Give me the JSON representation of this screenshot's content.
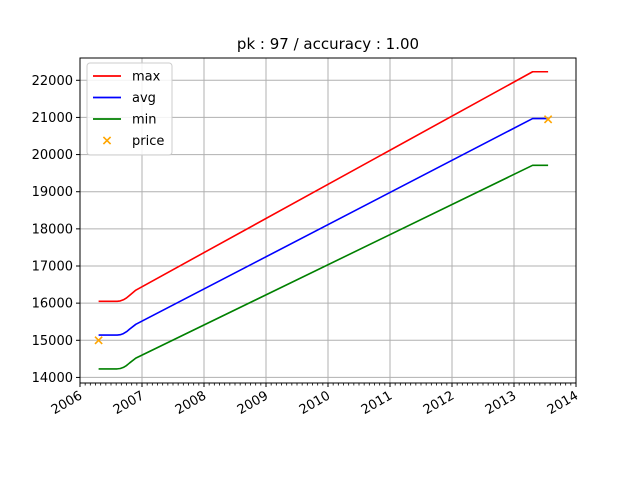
{
  "chart_data": {
    "type": "line",
    "title": "pk : 97 / accuracy : 1.00",
    "xlabel": "",
    "ylabel": "",
    "xlim": [
      2006.0,
      2014.0
    ],
    "ylim": [
      13850,
      22600
    ],
    "x_ticks": [
      2006,
      2007,
      2008,
      2009,
      2010,
      2011,
      2012,
      2013,
      2014
    ],
    "x_tick_labels": [
      "2006",
      "2007",
      "2008",
      "2009",
      "2010",
      "2011",
      "2012",
      "2013",
      "2014"
    ],
    "y_ticks": [
      14000,
      15000,
      16000,
      17000,
      18000,
      19000,
      20000,
      21000,
      22000
    ],
    "y_tick_labels": [
      "14000",
      "15000",
      "16000",
      "17000",
      "18000",
      "19000",
      "20000",
      "21000",
      "22000"
    ],
    "grid": true,
    "legend_position": "top-left",
    "series": [
      {
        "name": "max",
        "color": "#ff0000",
        "style": "line",
        "x": [
          2006.3,
          2006.6,
          2006.65,
          2006.7,
          2006.75,
          2006.8,
          2006.9,
          2013.3,
          2013.55
        ],
        "y": [
          16050,
          16050,
          16060,
          16090,
          16140,
          16210,
          16350,
          22230,
          22230
        ]
      },
      {
        "name": "avg",
        "color": "#0000ff",
        "style": "line",
        "x": [
          2006.3,
          2006.6,
          2006.65,
          2006.7,
          2006.75,
          2006.8,
          2006.9,
          2013.3,
          2013.55
        ],
        "y": [
          15140,
          15140,
          15150,
          15180,
          15230,
          15300,
          15430,
          20970,
          20970
        ]
      },
      {
        "name": "min",
        "color": "#008000",
        "style": "line",
        "x": [
          2006.3,
          2006.6,
          2006.65,
          2006.7,
          2006.75,
          2006.8,
          2006.9,
          2013.3,
          2013.55
        ],
        "y": [
          14230,
          14230,
          14240,
          14270,
          14320,
          14390,
          14520,
          19710,
          19710
        ]
      },
      {
        "name": "price",
        "color": "#ffa500",
        "style": "scatter",
        "x": [
          2006.3,
          2013.55
        ],
        "y": [
          15000,
          20950
        ]
      }
    ]
  }
}
